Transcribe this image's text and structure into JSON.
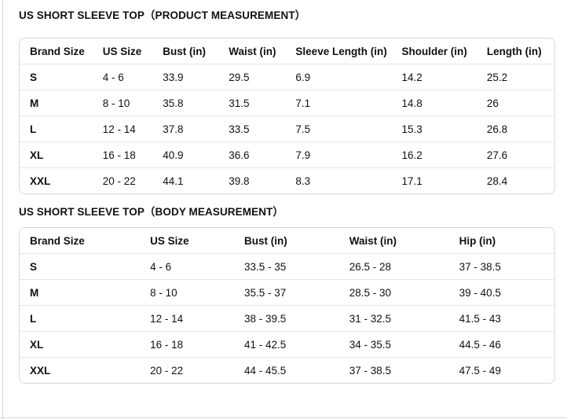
{
  "colors": {
    "text": "#0F1111",
    "table_border": "#D5D9D9",
    "row_divider": "#E7E7E7",
    "background": "#FFFFFF"
  },
  "tables": [
    {
      "title": "US SHORT SLEEVE TOP（PRODUCT MEASUREMENT）",
      "columns": [
        "Brand Size",
        "US Size",
        "Bust (in)",
        "Waist (in)",
        "Sleeve Length (in)",
        "Shoulder (in)",
        "Length (in)"
      ],
      "rows": [
        [
          "S",
          "4 - 6",
          "33.9",
          "29.5",
          "6.9",
          "14.2",
          "25.2"
        ],
        [
          "M",
          "8 - 10",
          "35.8",
          "31.5",
          "7.1",
          "14.8",
          "26"
        ],
        [
          "L",
          "12 - 14",
          "37.8",
          "33.5",
          "7.5",
          "15.3",
          "26.8"
        ],
        [
          "XL",
          "16 - 18",
          "40.9",
          "36.6",
          "7.9",
          "16.2",
          "27.6"
        ],
        [
          "XXL",
          "20 - 22",
          "44.1",
          "39.8",
          "8.3",
          "17.1",
          "28.4"
        ]
      ]
    },
    {
      "title": "US SHORT SLEEVE TOP（BODY MEASUREMENT）",
      "columns": [
        "Brand Size",
        "US Size",
        "Bust (in)",
        "Waist (in)",
        "Hip (in)"
      ],
      "rows": [
        [
          "S",
          "4 - 6",
          "33.5 - 35",
          "26.5 - 28",
          "37 - 38.5"
        ],
        [
          "M",
          "8 - 10",
          "35.5 - 37",
          "28.5 - 30",
          "39 - 40.5"
        ],
        [
          "L",
          "12 - 14",
          "38 - 39.5",
          "31 - 32.5",
          "41.5 - 43"
        ],
        [
          "XL",
          "16 - 18",
          "41 - 42.5",
          "34 - 35.5",
          "44.5 - 46"
        ],
        [
          "XXL",
          "20 - 22",
          "44 - 45.5",
          "37 - 38.5",
          "47.5 - 49"
        ]
      ]
    }
  ]
}
